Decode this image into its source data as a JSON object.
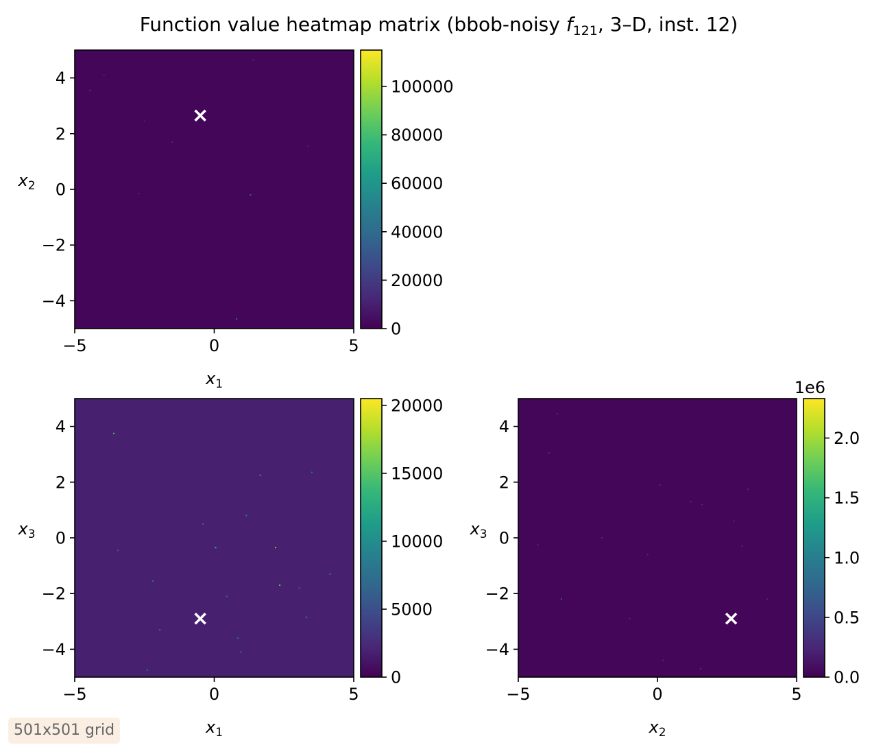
{
  "figure_title_parts": [
    "Function value heatmap matrix (bbob-noisy ",
    "f",
    "121",
    ", 3–D, inst. 12)"
  ],
  "grid_note": "501x501 grid",
  "colormap": [
    "#440154",
    "#482878",
    "#3e4989",
    "#31688e",
    "#26828e",
    "#1f9e89",
    "#35b779",
    "#6ece58",
    "#b5de2b",
    "#fde725"
  ],
  "marker_color": "#ffffff",
  "chart_data": [
    {
      "type": "heatmap",
      "id": "x1-x2",
      "x_var": [
        "x",
        "1"
      ],
      "y_var": [
        "x",
        "2"
      ],
      "xlim": [
        -5,
        5
      ],
      "ylim": [
        -5,
        5
      ],
      "xticks": [
        -5,
        0,
        5
      ],
      "yticks": [
        -4,
        -2,
        0,
        2,
        4
      ],
      "background_value": 1500,
      "optimum_marker": {
        "x": -0.5,
        "y": 2.65
      },
      "colorbar": {
        "min": 0,
        "max": 115000,
        "ticks": [
          0,
          20000,
          40000,
          60000,
          80000,
          100000
        ],
        "tick_labels": [
          "0",
          "20000",
          "40000",
          "60000",
          "80000",
          "100000"
        ],
        "offset_label": ""
      },
      "outliers": [
        {
          "x": -4.45,
          "y": 3.55,
          "v": 20000
        },
        {
          "x": -3.95,
          "y": 4.1,
          "v": 12000
        },
        {
          "x": -2.5,
          "y": 2.45,
          "v": 12000
        },
        {
          "x": -1.5,
          "y": 1.7,
          "v": 15000
        },
        {
          "x": -2.7,
          "y": -0.15,
          "v": 12000
        },
        {
          "x": 1.3,
          "y": -0.2,
          "v": 40000
        },
        {
          "x": 1.4,
          "y": 4.65,
          "v": 15000
        },
        {
          "x": 3.35,
          "y": 1.55,
          "v": 10000
        },
        {
          "x": 0.8,
          "y": -4.65,
          "v": 40000
        }
      ]
    },
    {
      "type": "heatmap",
      "id": "x1-x3",
      "x_var": [
        "x",
        "1"
      ],
      "y_var": [
        "x",
        "3"
      ],
      "xlim": [
        -5,
        5
      ],
      "ylim": [
        -5,
        5
      ],
      "xticks": [
        -5,
        0,
        5
      ],
      "yticks": [
        -4,
        -2,
        0,
        2,
        4
      ],
      "background_value": 1800,
      "optimum_marker": {
        "x": -0.5,
        "y": -2.9
      },
      "colorbar": {
        "min": 0,
        "max": 20500,
        "ticks": [
          0,
          5000,
          10000,
          15000,
          20000
        ],
        "tick_labels": [
          "0",
          "5000",
          "10000",
          "15000",
          "20000"
        ],
        "offset_label": ""
      },
      "outliers": [
        {
          "x": -3.6,
          "y": 3.75,
          "v": 15000
        },
        {
          "x": 1.65,
          "y": 2.25,
          "v": 12000
        },
        {
          "x": 3.5,
          "y": 2.35,
          "v": 8000
        },
        {
          "x": 1.15,
          "y": 0.8,
          "v": 9000
        },
        {
          "x": -0.4,
          "y": 0.5,
          "v": 8000
        },
        {
          "x": 0.05,
          "y": -0.35,
          "v": 14000
        },
        {
          "x": 2.2,
          "y": -0.35,
          "v": 16000
        },
        {
          "x": -3.45,
          "y": -0.45,
          "v": 7000
        },
        {
          "x": 4.15,
          "y": -1.3,
          "v": 9000
        },
        {
          "x": -2.2,
          "y": -1.55,
          "v": 8000
        },
        {
          "x": 2.35,
          "y": -1.7,
          "v": 15000
        },
        {
          "x": 3.05,
          "y": -1.8,
          "v": 7000
        },
        {
          "x": 0.45,
          "y": -2.1,
          "v": 7000
        },
        {
          "x": 3.3,
          "y": -2.85,
          "v": 10000
        },
        {
          "x": -1.95,
          "y": -3.3,
          "v": 8000
        },
        {
          "x": 0.85,
          "y": -3.6,
          "v": 8000
        },
        {
          "x": 0.95,
          "y": -4.1,
          "v": 8000
        },
        {
          "x": -2.4,
          "y": -4.75,
          "v": 8000
        }
      ]
    },
    {
      "type": "heatmap",
      "id": "x2-x3",
      "x_var": [
        "x",
        "2"
      ],
      "y_var": [
        "x",
        "3"
      ],
      "xlim": [
        -5,
        5
      ],
      "ylim": [
        -5,
        5
      ],
      "xticks": [
        -5,
        0,
        5
      ],
      "yticks": [
        -4,
        -2,
        0,
        2,
        4
      ],
      "background_value": 30000,
      "optimum_marker": {
        "x": 2.65,
        "y": -2.9
      },
      "colorbar": {
        "min": 0,
        "max": 2330000,
        "ticks": [
          0,
          500000,
          1000000,
          1500000,
          2000000
        ],
        "tick_labels": [
          "0.0",
          "0.5",
          "1.0",
          "1.5",
          "2.0"
        ],
        "offset_label": "1e6"
      },
      "outliers": [
        {
          "x": -3.6,
          "y": 4.45,
          "v": 400000
        },
        {
          "x": -3.9,
          "y": 3.05,
          "v": 350000
        },
        {
          "x": 0.1,
          "y": 1.9,
          "v": 300000
        },
        {
          "x": 3.25,
          "y": 1.75,
          "v": 300000
        },
        {
          "x": 1.2,
          "y": 1.3,
          "v": 350000
        },
        {
          "x": 1.6,
          "y": 1.2,
          "v": 300000
        },
        {
          "x": 2.75,
          "y": 0.6,
          "v": 300000
        },
        {
          "x": -2.0,
          "y": 0.0,
          "v": 300000
        },
        {
          "x": -4.3,
          "y": -0.25,
          "v": 300000
        },
        {
          "x": 3.05,
          "y": -0.3,
          "v": 300000
        },
        {
          "x": -0.35,
          "y": -0.6,
          "v": 300000
        },
        {
          "x": -3.45,
          "y": -2.2,
          "v": 700000
        },
        {
          "x": -1.0,
          "y": -2.9,
          "v": 300000
        },
        {
          "x": 3.95,
          "y": -2.2,
          "v": 300000
        },
        {
          "x": 0.2,
          "y": -4.4,
          "v": 350000
        },
        {
          "x": 1.55,
          "y": -4.7,
          "v": 400000
        }
      ]
    }
  ]
}
